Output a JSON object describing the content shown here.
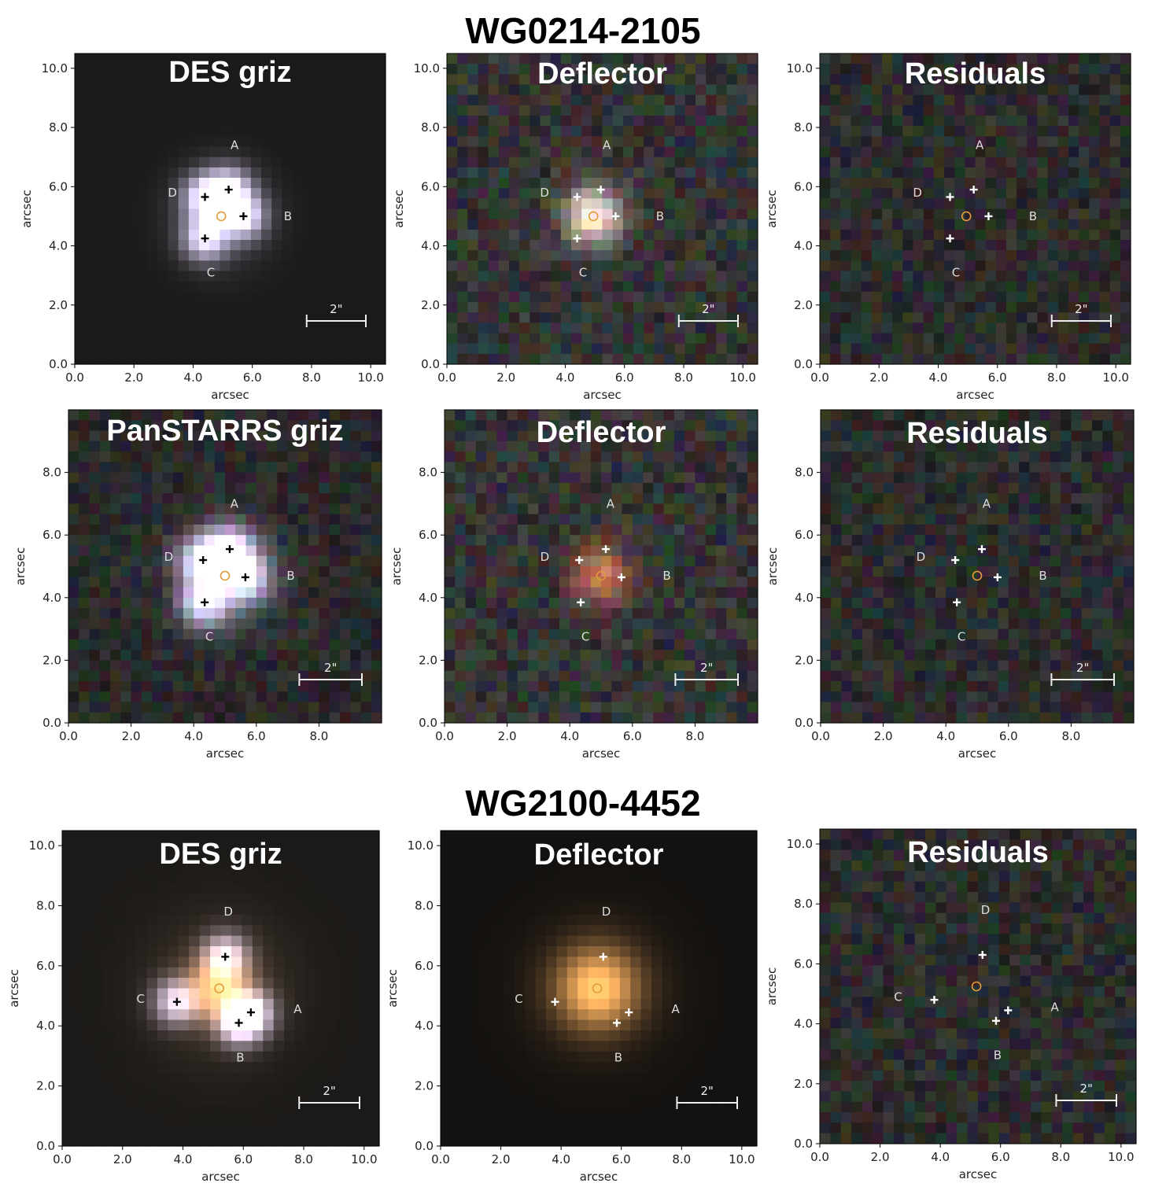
{
  "figure": {
    "headings": [
      "WG0214-2105",
      "WG2100-4452"
    ],
    "axis_label": "arcsec",
    "scale_bar": "2\"",
    "panels": [
      {
        "title": "DES griz",
        "kind": "data",
        "palette": "des1",
        "xticks": [
          "0.0",
          "2.0",
          "4.0",
          "6.0",
          "8.0",
          "10.0"
        ],
        "yticks": [
          "0.0",
          "2.0",
          "4.0",
          "6.0",
          "8.0",
          "10.0"
        ],
        "extent": [
          0,
          10.5
        ],
        "cross_color": "#000000",
        "images": [
          {
            "name": "A",
            "x": 5.2,
            "y": 5.9
          },
          {
            "name": "B",
            "x": 5.7,
            "y": 5.0
          },
          {
            "name": "C",
            "x": 4.4,
            "y": 4.25
          },
          {
            "name": "D",
            "x": 4.4,
            "y": 5.65
          }
        ],
        "label_pos": {
          "A": [
            5.4,
            7.4
          ],
          "B": [
            7.2,
            5.0
          ],
          "C": [
            4.6,
            3.1
          ],
          "D": [
            3.3,
            5.8
          ]
        },
        "center": {
          "x": 4.95,
          "y": 5.0
        }
      },
      {
        "title": "Deflector",
        "kind": "model",
        "palette": "defl1",
        "xticks": [
          "0.0",
          "2.0",
          "4.0",
          "6.0",
          "8.0",
          "10.0"
        ],
        "yticks": [
          "0.0",
          "2.0",
          "4.0",
          "6.0",
          "8.0",
          "10.0"
        ],
        "extent": [
          0,
          10.5
        ],
        "cross_color": "#ffffff",
        "images": [
          {
            "name": "A",
            "x": 5.2,
            "y": 5.9
          },
          {
            "name": "B",
            "x": 5.7,
            "y": 5.0
          },
          {
            "name": "C",
            "x": 4.4,
            "y": 4.25
          },
          {
            "name": "D",
            "x": 4.4,
            "y": 5.65
          }
        ],
        "label_pos": {
          "A": [
            5.4,
            7.4
          ],
          "B": [
            7.2,
            5.0
          ],
          "C": [
            4.6,
            3.1
          ],
          "D": [
            3.3,
            5.8
          ]
        },
        "center": {
          "x": 4.95,
          "y": 5.0
        }
      },
      {
        "title": "Residuals",
        "kind": "resid",
        "palette": "noise",
        "xticks": [
          "0.0",
          "2.0",
          "4.0",
          "6.0",
          "8.0",
          "10.0"
        ],
        "yticks": [
          "0.0",
          "2.0",
          "4.0",
          "6.0",
          "8.0",
          "10.0"
        ],
        "extent": [
          0,
          10.5
        ],
        "cross_color": "#ffffff",
        "images": [
          {
            "name": "A",
            "x": 5.2,
            "y": 5.9
          },
          {
            "name": "B",
            "x": 5.7,
            "y": 5.0
          },
          {
            "name": "C",
            "x": 4.4,
            "y": 4.25
          },
          {
            "name": "D",
            "x": 4.4,
            "y": 5.65
          }
        ],
        "label_pos": {
          "A": [
            5.4,
            7.4
          ],
          "B": [
            7.2,
            5.0
          ],
          "C": [
            4.6,
            3.1
          ],
          "D": [
            3.3,
            5.8
          ]
        },
        "center": {
          "x": 4.95,
          "y": 5.0
        }
      },
      {
        "title": "PanSTARRS griz",
        "kind": "data",
        "palette": "ps",
        "xticks": [
          "0.0",
          "2.0",
          "4.0",
          "6.0",
          "8.0"
        ],
        "yticks": [
          "0.0",
          "2.0",
          "4.0",
          "6.0",
          "8.0"
        ],
        "extent": [
          0,
          10.0
        ],
        "cross_color": "#000000",
        "images": [
          {
            "name": "A",
            "x": 5.15,
            "y": 5.55
          },
          {
            "name": "B",
            "x": 5.65,
            "y": 4.65
          },
          {
            "name": "C",
            "x": 4.35,
            "y": 3.85
          },
          {
            "name": "D",
            "x": 4.3,
            "y": 5.2
          }
        ],
        "label_pos": {
          "A": [
            5.3,
            7.0
          ],
          "B": [
            7.1,
            4.7
          ],
          "C": [
            4.5,
            2.75
          ],
          "D": [
            3.2,
            5.3
          ]
        },
        "center": {
          "x": 5.0,
          "y": 4.7
        }
      },
      {
        "title": "Deflector",
        "kind": "model",
        "palette": "defl2",
        "xticks": [
          "0.0",
          "2.0",
          "4.0",
          "6.0",
          "8.0"
        ],
        "yticks": [
          "0.0",
          "2.0",
          "4.0",
          "6.0",
          "8.0"
        ],
        "extent": [
          0,
          10.0
        ],
        "cross_color": "#ffffff",
        "images": [
          {
            "name": "A",
            "x": 5.15,
            "y": 5.55
          },
          {
            "name": "B",
            "x": 5.65,
            "y": 4.65
          },
          {
            "name": "C",
            "x": 4.35,
            "y": 3.85
          },
          {
            "name": "D",
            "x": 4.3,
            "y": 5.2
          }
        ],
        "label_pos": {
          "A": [
            5.3,
            7.0
          ],
          "B": [
            7.1,
            4.7
          ],
          "C": [
            4.5,
            2.75
          ],
          "D": [
            3.2,
            5.3
          ]
        },
        "center": {
          "x": 5.0,
          "y": 4.7
        }
      },
      {
        "title": "Residuals",
        "kind": "resid",
        "palette": "noise",
        "xticks": [
          "0.0",
          "2.0",
          "4.0",
          "6.0",
          "8.0"
        ],
        "yticks": [
          "0.0",
          "2.0",
          "4.0",
          "6.0",
          "8.0"
        ],
        "extent": [
          0,
          10.0
        ],
        "cross_color": "#ffffff",
        "images": [
          {
            "name": "A",
            "x": 5.15,
            "y": 5.55
          },
          {
            "name": "B",
            "x": 5.65,
            "y": 4.65
          },
          {
            "name": "C",
            "x": 4.35,
            "y": 3.85
          },
          {
            "name": "D",
            "x": 4.3,
            "y": 5.2
          }
        ],
        "label_pos": {
          "A": [
            5.3,
            7.0
          ],
          "B": [
            7.1,
            4.7
          ],
          "C": [
            4.5,
            2.75
          ],
          "D": [
            3.2,
            5.3
          ]
        },
        "center": {
          "x": 5.0,
          "y": 4.7
        }
      },
      {
        "title": "DES griz",
        "kind": "data",
        "palette": "des2",
        "xticks": [
          "0.0",
          "2.0",
          "4.0",
          "6.0",
          "8.0",
          "10.0"
        ],
        "yticks": [
          "0.0",
          "2.0",
          "4.0",
          "6.0",
          "8.0",
          "10.0"
        ],
        "extent": [
          0,
          10.5
        ],
        "cross_color": "#000000",
        "images": [
          {
            "name": "A",
            "x": 6.25,
            "y": 4.45
          },
          {
            "name": "B",
            "x": 5.85,
            "y": 4.1
          },
          {
            "name": "C",
            "x": 3.8,
            "y": 4.8
          },
          {
            "name": "D",
            "x": 5.4,
            "y": 6.3
          }
        ],
        "label_pos": {
          "A": [
            7.8,
            4.55
          ],
          "B": [
            5.9,
            2.95
          ],
          "C": [
            2.6,
            4.9
          ],
          "D": [
            5.5,
            7.8
          ]
        },
        "center": {
          "x": 5.2,
          "y": 5.25
        }
      },
      {
        "title": "Deflector",
        "kind": "model",
        "palette": "defl3",
        "xticks": [
          "0.0",
          "2.0",
          "4.0",
          "6.0",
          "8.0",
          "10.0"
        ],
        "yticks": [
          "0.0",
          "2.0",
          "4.0",
          "6.0",
          "8.0",
          "10.0"
        ],
        "extent": [
          0,
          10.5
        ],
        "cross_color": "#ffffff",
        "images": [
          {
            "name": "A",
            "x": 6.25,
            "y": 4.45
          },
          {
            "name": "B",
            "x": 5.85,
            "y": 4.1
          },
          {
            "name": "C",
            "x": 3.8,
            "y": 4.8
          },
          {
            "name": "D",
            "x": 5.4,
            "y": 6.3
          }
        ],
        "label_pos": {
          "A": [
            7.8,
            4.55
          ],
          "B": [
            5.9,
            2.95
          ],
          "C": [
            2.6,
            4.9
          ],
          "D": [
            5.5,
            7.8
          ]
        },
        "center": {
          "x": 5.2,
          "y": 5.25
        }
      },
      {
        "title": "Residuals",
        "kind": "resid",
        "palette": "noise",
        "xticks": [
          "0.0",
          "2.0",
          "4.0",
          "6.0",
          "8.0",
          "10.0"
        ],
        "yticks": [
          "0.0",
          "2.0",
          "4.0",
          "6.0",
          "8.0",
          "10.0"
        ],
        "extent": [
          0,
          10.5
        ],
        "cross_color": "#ffffff",
        "images": [
          {
            "name": "A",
            "x": 6.25,
            "y": 4.45
          },
          {
            "name": "B",
            "x": 5.85,
            "y": 4.1
          },
          {
            "name": "C",
            "x": 3.8,
            "y": 4.8
          },
          {
            "name": "D",
            "x": 5.4,
            "y": 6.3
          }
        ],
        "label_pos": {
          "A": [
            7.8,
            4.55
          ],
          "B": [
            5.9,
            2.95
          ],
          "C": [
            2.6,
            4.9
          ],
          "D": [
            5.5,
            7.8
          ]
        },
        "center": {
          "x": 5.2,
          "y": 5.25
        }
      }
    ],
    "center_marker_color": "#e39b3a"
  }
}
